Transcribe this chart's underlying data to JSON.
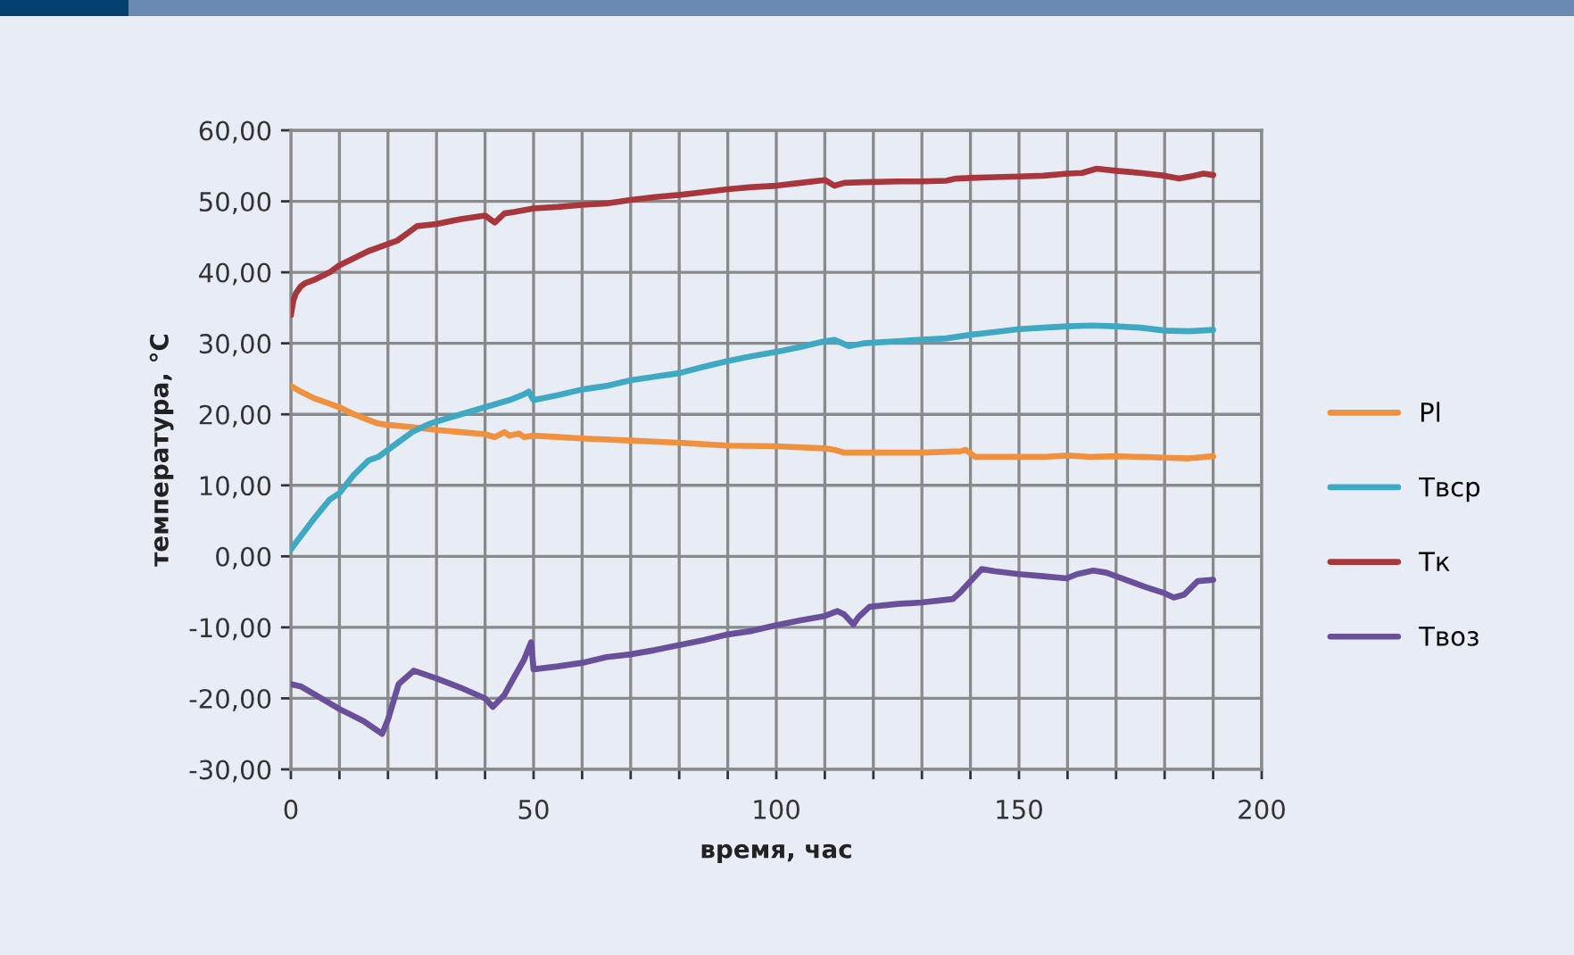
{
  "chart_data": {
    "type": "line",
    "xlabel": "время, час",
    "ylabel": "температура, °С",
    "xlim": [
      0,
      200
    ],
    "ylim": [
      -30,
      60
    ],
    "xticks": [
      0,
      {
        "value": 10,
        "label": null
      },
      {
        "value": 20,
        "label": null
      },
      {
        "value": 30,
        "label": null
      },
      {
        "value": 40,
        "label": null
      },
      50,
      {
        "value": 60,
        "label": null
      },
      {
        "value": 70,
        "label": null
      },
      {
        "value": 80,
        "label": null
      },
      {
        "value": 90,
        "label": null
      },
      100,
      {
        "value": 110,
        "label": null
      },
      {
        "value": 120,
        "label": null
      },
      {
        "value": 130,
        "label": null
      },
      {
        "value": 140,
        "label": null
      },
      150,
      {
        "value": 160,
        "label": null
      },
      {
        "value": 170,
        "label": null
      },
      {
        "value": 180,
        "label": null
      },
      {
        "value": 190,
        "label": null
      },
      200
    ],
    "yticks": [
      {
        "value": -30,
        "label": "-30,00"
      },
      {
        "value": -20,
        "label": "-20,00"
      },
      {
        "value": -10,
        "label": "-10,00"
      },
      {
        "value": 0,
        "label": "0,00"
      },
      {
        "value": 10,
        "label": "10,00"
      },
      {
        "value": 20,
        "label": "20,00"
      },
      {
        "value": 30,
        "label": "30,00"
      },
      {
        "value": 40,
        "label": "40,00"
      },
      {
        "value": 50,
        "label": "50,00"
      },
      {
        "value": 60,
        "label": "60,00"
      }
    ],
    "grid": true,
    "legend": "right",
    "series": [
      {
        "name": "Pl",
        "color": "#f0913f",
        "x": [
          0,
          2,
          5,
          8,
          10,
          13,
          16,
          18,
          20,
          25,
          30,
          35,
          40,
          42,
          44,
          45,
          47,
          48,
          50,
          55,
          60,
          70,
          80,
          90,
          100,
          110,
          112,
          114,
          120,
          130,
          138,
          139,
          141,
          145,
          150,
          155,
          160,
          165,
          170,
          175,
          180,
          185,
          190
        ],
        "values": [
          24,
          23.2,
          22.2,
          21.5,
          21,
          20,
          19.2,
          18.7,
          18.5,
          18.2,
          17.8,
          17.5,
          17.2,
          16.8,
          17.5,
          17,
          17.3,
          16.8,
          17,
          16.8,
          16.6,
          16.3,
          16,
          15.6,
          15.5,
          15.2,
          15,
          14.6,
          14.6,
          14.6,
          14.8,
          15,
          14,
          14,
          14,
          14,
          14.2,
          14,
          14.1,
          14,
          13.9,
          13.8,
          14.1
        ]
      },
      {
        "name": "Твср",
        "color": "#3fa9c4",
        "x": [
          0,
          2,
          5,
          8,
          10,
          13,
          16,
          18,
          20,
          22,
          25,
          28,
          30,
          35,
          40,
          45,
          48,
          49,
          50,
          55,
          60,
          65,
          70,
          75,
          80,
          85,
          90,
          95,
          100,
          105,
          110,
          112,
          115,
          118,
          125,
          130,
          135,
          140,
          145,
          150,
          155,
          160,
          165,
          170,
          175,
          180,
          185,
          190
        ],
        "values": [
          1.0,
          2.8,
          5.5,
          8,
          8.9,
          11.5,
          13.5,
          14,
          15,
          16,
          17.5,
          18.5,
          19,
          20,
          21,
          22,
          22.8,
          23.2,
          22,
          22.7,
          23.5,
          24,
          24.8,
          25.3,
          25.8,
          26.7,
          27.5,
          28.2,
          28.8,
          29.5,
          30.3,
          30.5,
          29.6,
          30,
          30.3,
          30.5,
          30.7,
          31.2,
          31.6,
          32,
          32.2,
          32.4,
          32.5,
          32.4,
          32.2,
          31.8,
          31.7,
          31.9
        ]
      },
      {
        "name": "Тк",
        "color": "#a8363d",
        "x": [
          0,
          0.5,
          1,
          2,
          3,
          5,
          8,
          10,
          13,
          16,
          18,
          20,
          22,
          24,
          26,
          30,
          35,
          40,
          42,
          44,
          46,
          50,
          55,
          60,
          65,
          70,
          75,
          80,
          85,
          90,
          95,
          100,
          105,
          110,
          112,
          114,
          118,
          125,
          130,
          135,
          137,
          140,
          145,
          150,
          155,
          160,
          163,
          166,
          170,
          175,
          180,
          183,
          186,
          188,
          190
        ],
        "values": [
          34,
          36,
          37,
          38,
          38.5,
          39,
          40,
          41,
          42,
          43,
          43.5,
          44,
          44.5,
          45.5,
          46.5,
          46.8,
          47.5,
          48,
          47,
          48.3,
          48.5,
          49,
          49.2,
          49.5,
          49.7,
          50.2,
          50.6,
          50.9,
          51.3,
          51.7,
          52,
          52.2,
          52.6,
          53,
          52.2,
          52.6,
          52.7,
          52.8,
          52.8,
          52.9,
          53.2,
          53.3,
          53.4,
          53.5,
          53.6,
          53.9,
          54,
          54.6,
          54.3,
          54,
          53.6,
          53.2,
          53.6,
          53.9,
          53.7
        ]
      },
      {
        "name": "Твоз",
        "color": "#6a4f9a",
        "x": [
          0,
          2,
          5,
          10,
          15,
          18.8,
          20,
          22.2,
          25.3,
          30,
          35,
          40,
          41.6,
          44,
          46,
          48,
          49.5,
          50,
          55,
          60,
          65,
          70,
          75,
          80,
          85,
          90,
          95,
          100,
          105,
          110,
          112.6,
          114,
          115.9,
          117,
          119.2,
          125,
          130,
          136.4,
          138,
          140,
          142.3,
          145,
          150,
          155,
          159.8,
          162,
          165.3,
          168,
          172,
          176,
          180,
          181.9,
          184,
          186.8,
          190
        ],
        "values": [
          -18,
          -18.3,
          -19.5,
          -21.5,
          -23.2,
          -25,
          -23,
          -18,
          -16.1,
          -17.2,
          -18.5,
          -20,
          -21.2,
          -19.5,
          -17,
          -14.6,
          -12.1,
          -15.9,
          -15.5,
          -15,
          -14.2,
          -13.8,
          -13.2,
          -12.5,
          -11.8,
          -11,
          -10.5,
          -9.7,
          -9,
          -8.4,
          -7.7,
          -8.2,
          -9.6,
          -8.5,
          -7.1,
          -6.7,
          -6.5,
          -6,
          -5,
          -3.5,
          -1.8,
          -2.1,
          -2.5,
          -2.8,
          -3.1,
          -2.5,
          -2,
          -2.3,
          -3.3,
          -4.3,
          -5.2,
          -5.8,
          -5.4,
          -3.5,
          -3.3
        ]
      }
    ]
  }
}
